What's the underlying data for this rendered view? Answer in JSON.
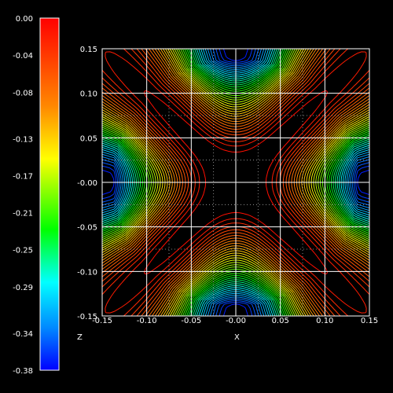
{
  "chart_data": {
    "type": "contour",
    "title": "",
    "xlabel": "X",
    "ylabel": "",
    "zlabel": "Z",
    "xlim": [
      -0.15,
      0.15
    ],
    "ylim": [
      -0.15,
      0.15
    ],
    "zlim": [
      -0.38,
      0.0
    ],
    "x_ticks": [
      "-0.15",
      "-0.10",
      "-0.05",
      "-0.00",
      "0.05",
      "0.10",
      "0.15"
    ],
    "y_ticks": [
      "0.15",
      "0.10",
      "0.05",
      "-0.00",
      "-0.05",
      "-0.10",
      "-0.15"
    ],
    "colorbar_ticks": [
      "0.00",
      "-0.04",
      "-0.08",
      "-0.13",
      "-0.17",
      "-0.21",
      "-0.25",
      "-0.29",
      "-0.34",
      "-0.38"
    ],
    "contour_levels": 40,
    "field": "symmetric four-lobed potential: minimum -0.38 at the midpoints of all four edges, maximum near 0.00 in the center and along the diagonals",
    "grid": true,
    "colormap": "rainbow (red = 0.00 at top, blue = -0.38 at bottom)",
    "colors": {
      "background": "#000000",
      "grid": "#ffffff",
      "frame": "#ffffff"
    }
  }
}
